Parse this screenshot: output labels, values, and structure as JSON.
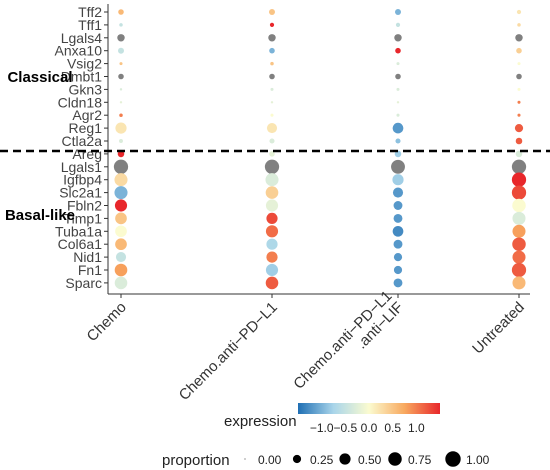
{
  "chart_data": {
    "type": "dotplot",
    "x_categories": [
      "Chemo",
      "Chemo.anti−PD−L1",
      "Chemo.anti−PD−L1\n.anti−LIF",
      "Untreated"
    ],
    "genes": [
      "Tff2",
      "Tff1",
      "Lgals4",
      "Anxa10",
      "Vsig2",
      "Dmbt1",
      "Gkn3",
      "Cldn18",
      "Agr2",
      "Reg1",
      "Ctla2a",
      "Areg",
      "Lgals1",
      "Igfbp4",
      "Slc2a1",
      "Fbln2",
      "Timp1",
      "Tuba1a",
      "Col6a1",
      "Nid1",
      "Fn1",
      "Sparc"
    ],
    "groups": [
      {
        "label": "Classical",
        "genes": [
          "Tff2",
          "Tff1",
          "Lgals4",
          "Anxa10",
          "Vsig2",
          "Dmbt1",
          "Gkn3",
          "Cldn18",
          "Agr2",
          "Reg1",
          "Ctla2a"
        ]
      },
      {
        "label": "Basal-like",
        "genes": [
          "Areg",
          "Lgals1",
          "Igfbp4",
          "Slc2a1",
          "Fbln2",
          "Timp1",
          "Tuba1a",
          "Col6a1",
          "Nid1",
          "Fn1",
          "Sparc"
        ]
      }
    ],
    "expression": [
      [
        0.6,
        0.5,
        -1.0,
        0.2
      ],
      [
        -0.5,
        1.5,
        -0.5,
        0.3
      ],
      [
        null,
        null,
        null,
        null
      ],
      [
        -0.5,
        -1.0,
        1.5,
        0.4
      ],
      [
        0.5,
        0.5,
        -0.3,
        0.0
      ],
      [
        null,
        null,
        null,
        null
      ],
      [
        -0.3,
        -0.3,
        -0.3,
        0.0
      ],
      [
        -0.2,
        -0.2,
        -0.2,
        1.0
      ],
      [
        1.0,
        0.0,
        -0.3,
        1.0
      ],
      [
        0.2,
        0.2,
        -1.2,
        1.2
      ],
      [
        -0.3,
        -0.3,
        -0.9,
        1.2
      ],
      [
        1.5,
        -0.2,
        -0.8,
        -0.3
      ],
      [
        null,
        null,
        null,
        null
      ],
      [
        0.3,
        -0.3,
        -0.8,
        1.5
      ],
      [
        -1.0,
        0.4,
        -1.2,
        1.3
      ],
      [
        1.5,
        -0.2,
        -1.2,
        0.0
      ],
      [
        0.5,
        1.3,
        -1.2,
        -0.3
      ],
      [
        0.0,
        1.1,
        -1.3,
        0.8
      ],
      [
        0.6,
        -0.7,
        -1.2,
        1.2
      ],
      [
        -0.5,
        1.0,
        -1.2,
        1.1
      ],
      [
        0.8,
        -0.8,
        -1.2,
        1.2
      ],
      [
        -0.3,
        1.2,
        -1.2,
        0.6
      ]
    ],
    "gray_cells": [
      [
        "Lgals4",
        "Chemo"
      ],
      [
        "Lgals4",
        "Chemo.anti−PD−L1"
      ],
      [
        "Lgals4",
        "Chemo.anti−PD−L1\n.anti−LIF"
      ],
      [
        "Lgals4",
        "Untreated"
      ],
      [
        "Dmbt1",
        "Chemo"
      ],
      [
        "Dmbt1",
        "Chemo.anti−PD−L1"
      ],
      [
        "Dmbt1",
        "Chemo.anti−PD−L1\n.anti−LIF"
      ],
      [
        "Dmbt1",
        "Untreated"
      ],
      [
        "Lgals1",
        "Chemo"
      ],
      [
        "Lgals1",
        "Chemo.anti−PD−L1"
      ],
      [
        "Lgals1",
        "Chemo.anti−PD−L1\n.anti−LIF"
      ],
      [
        "Lgals1",
        "Untreated"
      ]
    ],
    "proportion": [
      [
        0.1,
        0.12,
        0.12,
        0.05
      ],
      [
        0.03,
        0.05,
        0.05,
        0.03
      ],
      [
        0.2,
        0.2,
        0.2,
        0.2
      ],
      [
        0.12,
        0.1,
        0.1,
        0.1
      ],
      [
        0.02,
        0.03,
        0.02,
        0.02
      ],
      [
        0.1,
        0.1,
        0.1,
        0.1
      ],
      [
        0.01,
        0.02,
        0.02,
        0.02
      ],
      [
        0.01,
        0.01,
        0.01,
        0.02
      ],
      [
        0.03,
        0.02,
        0.02,
        0.02
      ],
      [
        0.5,
        0.4,
        0.45,
        0.25
      ],
      [
        0.04,
        0.08,
        0.08,
        0.15
      ],
      [
        0.15,
        0.1,
        0.15,
        0.15
      ],
      [
        0.85,
        0.85,
        0.8,
        0.85
      ],
      [
        0.7,
        0.7,
        0.5,
        0.85
      ],
      [
        0.7,
        0.65,
        0.4,
        0.85
      ],
      [
        0.6,
        0.6,
        0.3,
        0.75
      ],
      [
        0.55,
        0.5,
        0.3,
        0.7
      ],
      [
        0.55,
        0.6,
        0.45,
        0.7
      ],
      [
        0.55,
        0.5,
        0.3,
        0.75
      ],
      [
        0.4,
        0.5,
        0.25,
        0.7
      ],
      [
        0.65,
        0.6,
        0.25,
        0.85
      ],
      [
        0.65,
        0.65,
        0.3,
        0.7
      ]
    ],
    "legend": {
      "expression_title": "expression",
      "expression_ticks": [
        "−1.0",
        "−0.5",
        "0.0",
        "0.5",
        "1.0"
      ],
      "expression_range": [
        -1.5,
        1.5
      ],
      "proportion_title": "proportion",
      "proportion_ticks": [
        "0.00",
        "0.25",
        "0.50",
        "0.75",
        "1.00"
      ],
      "proportion_values": [
        0.0,
        0.25,
        0.5,
        0.75,
        1.0
      ]
    },
    "colors": {
      "low": "#1f6fb4",
      "mid_low": "#a9d5ea",
      "mid": "#fbfbd0",
      "mid_high": "#f8a95f",
      "high": "#e8272b",
      "gray": "#808080",
      "divider": "#000000"
    }
  }
}
